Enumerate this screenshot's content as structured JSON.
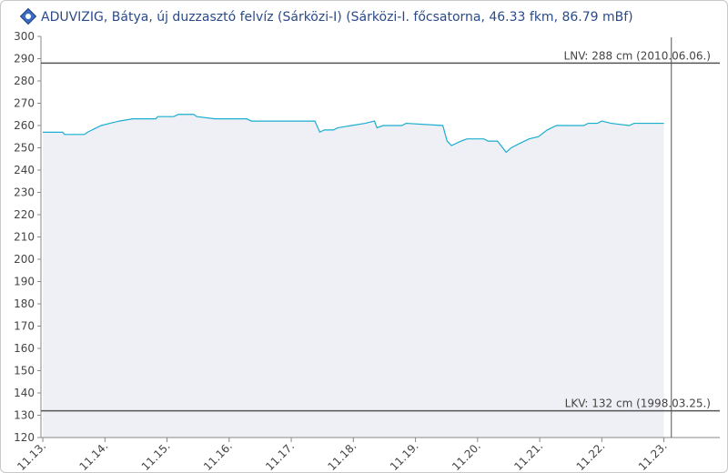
{
  "chart_data": {
    "type": "area-line",
    "title": "ADUVIZIG, Bátya, új duzzasztó felvíz  (Sárközi-I) (Sárközi-I. főcsatorna, 46.33 fkm, 86.79 mBf)",
    "x": [
      0,
      0.32,
      0.35,
      0.67,
      0.72,
      0.79,
      0.94,
      1.08,
      1.23,
      1.45,
      1.82,
      1.85,
      2.11,
      2.18,
      2.43,
      2.48,
      2.77,
      3.28,
      3.36,
      4.38,
      4.46,
      4.53,
      4.68,
      4.75,
      4.97,
      5.19,
      5.34,
      5.38,
      5.48,
      5.78,
      5.85,
      6.44,
      6.51,
      6.58,
      6.73,
      6.83,
      7.1,
      7.17,
      7.32,
      7.46,
      7.54,
      7.68,
      7.83,
      7.98,
      8.12,
      8.27,
      8.71,
      8.78,
      8.93,
      9.0,
      9.15,
      9.44,
      9.52,
      10.0
    ],
    "series": [
      {
        "color": "#1aaed0",
        "fill": "#eff0f5",
        "values": [
          257,
          257,
          256,
          256,
          257,
          258,
          260,
          261,
          262,
          263,
          263,
          264,
          264,
          265,
          265,
          264,
          263,
          263,
          262,
          262,
          257,
          258,
          258,
          259,
          260,
          261,
          262,
          259,
          260,
          260,
          261,
          260,
          253,
          251,
          253,
          254,
          254,
          253,
          253,
          248,
          250,
          252,
          254,
          255,
          258,
          260,
          260,
          261,
          261,
          262,
          261,
          260,
          261,
          261
        ]
      }
    ],
    "xlim": [
      -0.03,
      10.9
    ],
    "xticks": [
      {
        "value": 0,
        "label": "11.13."
      },
      {
        "value": 1,
        "label": "11.14."
      },
      {
        "value": 2,
        "label": "11.15."
      },
      {
        "value": 3,
        "label": "11.16."
      },
      {
        "value": 4,
        "label": "11.17."
      },
      {
        "value": 5,
        "label": "11.18."
      },
      {
        "value": 6,
        "label": "11.19."
      },
      {
        "value": 7,
        "label": "11.20."
      },
      {
        "value": 8,
        "label": "11.21."
      },
      {
        "value": 9,
        "label": "11.22."
      },
      {
        "value": 10,
        "label": "11.23."
      }
    ],
    "ylim": [
      120,
      300
    ],
    "yticks": [
      120,
      130,
      140,
      150,
      160,
      170,
      180,
      190,
      200,
      210,
      220,
      230,
      240,
      250,
      260,
      270,
      280,
      290,
      300
    ],
    "reference_lines": [
      {
        "value": 288,
        "label": "LNV: 288 cm (2010.06.06.)"
      },
      {
        "value": 132,
        "label": "LKV: 132 cm (1998.03.25.)"
      }
    ],
    "vline_x": 10.12
  }
}
